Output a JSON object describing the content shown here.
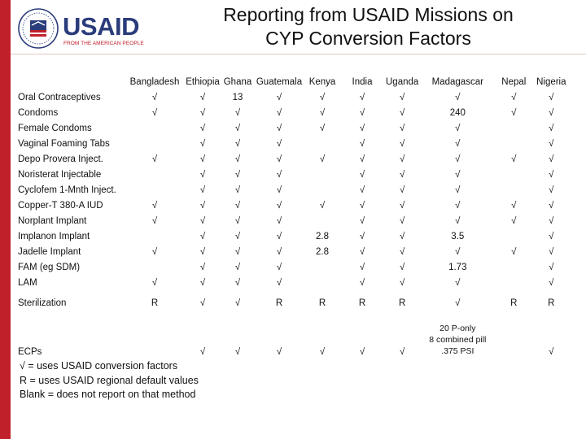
{
  "header": {
    "title_line1": "Reporting from USAID Missions on",
    "title_line2": "CYP Conversion Factors"
  },
  "logo": {
    "name": "USAID",
    "tagline": "FROM THE AMERICAN PEOPLE",
    "colors": {
      "red": "#c0202a",
      "blue": "#2a3c7a"
    }
  },
  "table": {
    "columns": [
      "",
      "Bangladesh",
      "Ethiopia",
      "Ghana",
      "Guatemala",
      "Kenya",
      "India",
      "Uganda",
      "Madagascar",
      "Nepal",
      "Nigeria"
    ],
    "rows": [
      [
        "Oral Contraceptives",
        "√",
        "√",
        "13",
        "√",
        "√",
        "√",
        "√",
        "√",
        "√",
        "√"
      ],
      [
        "Condoms",
        "√",
        "√",
        "√",
        "√",
        "√",
        "√",
        "√",
        "240",
        "√",
        "√"
      ],
      [
        "Female Condoms",
        "",
        "√",
        "√",
        "√",
        "√",
        "√",
        "√",
        "√",
        "",
        "√"
      ],
      [
        "Vaginal Foaming Tabs",
        "",
        "√",
        "√",
        "√",
        "",
        "√",
        "√",
        "√",
        "",
        "√"
      ],
      [
        "Depo Provera Inject.",
        "√",
        "√",
        "√",
        "√",
        "√",
        "√",
        "√",
        "√",
        "√",
        "√"
      ],
      [
        "Noristerat Injectable",
        "",
        "√",
        "√",
        "√",
        "",
        "√",
        "√",
        "√",
        "",
        "√"
      ],
      [
        "Cyclofem 1-Mnth Inject.",
        "",
        "√",
        "√",
        "√",
        "",
        "√",
        "√",
        "√",
        "",
        "√"
      ],
      [
        "Copper-T 380-A IUD",
        "√",
        "√",
        "√",
        "√",
        "√",
        "√",
        "√",
        "√",
        "√",
        "√"
      ],
      [
        "Norplant Implant",
        "√",
        "√",
        "√",
        "√",
        "",
        "√",
        "√",
        "√",
        "√",
        "√"
      ],
      [
        "Implanon Implant",
        "",
        "√",
        "√",
        "√",
        "2.8",
        "√",
        "√",
        "3.5",
        "",
        "√"
      ],
      [
        "Jadelle Implant",
        "√",
        "√",
        "√",
        "√",
        "2.8",
        "√",
        "√",
        "√",
        "√",
        "√"
      ],
      [
        "FAM (eg SDM)",
        "",
        "√",
        "√",
        "√",
        "",
        "√",
        "√",
        "1.73",
        "",
        "√"
      ],
      [
        "LAM",
        "√",
        "√",
        "√",
        "√",
        "",
        "√",
        "√",
        "√",
        "",
        "√"
      ]
    ],
    "sterilization": [
      "Sterilization",
      "R",
      "√",
      "√",
      "R",
      "R",
      "R",
      "R",
      "√",
      "R",
      "R"
    ],
    "ecps": {
      "label": "ECPs",
      "cells": [
        "",
        "√",
        "√",
        "√",
        "√",
        "√",
        "√",
        "",
        "",
        "√"
      ],
      "madagascar_note": [
        "20 P-only",
        "8 combined pill",
        ".375 PSI"
      ]
    }
  },
  "legend": [
    "√ = uses USAID conversion factors",
    "R = uses USAID regional default values",
    "Blank = does not report on that method"
  ]
}
